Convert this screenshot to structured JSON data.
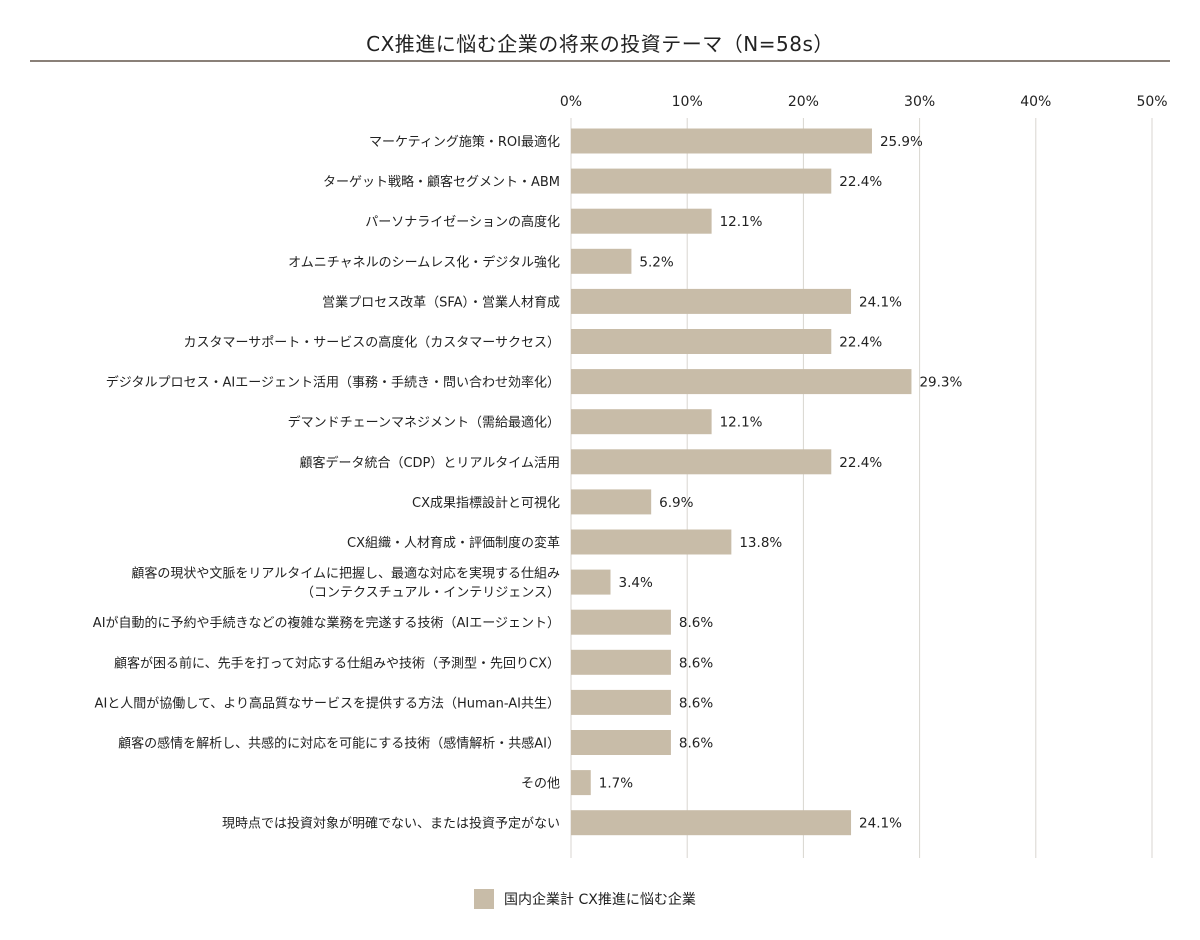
{
  "chart_data": {
    "type": "bar",
    "orientation": "horizontal",
    "title": "CX推進に悩む企業の将来の投資テーマ（N=58s）",
    "xlim": [
      0,
      50
    ],
    "ticks": [
      "0%",
      "10%",
      "20%",
      "30%",
      "40%",
      "50%"
    ],
    "tick_values": [
      0,
      10,
      20,
      30,
      40,
      50
    ],
    "grid": true,
    "legend_position": "bottom",
    "bar_color": "#c8bca8",
    "categories": [
      [
        "マーケティング施策・ROI最適化"
      ],
      [
        "ターゲット戦略・顧客セグメント・ABM"
      ],
      [
        "パーソナライゼーションの高度化"
      ],
      [
        "オムニチャネルのシームレス化・デジタル強化"
      ],
      [
        "営業プロセス改革（SFA）・営業人材育成"
      ],
      [
        "カスタマーサポート・サービスの高度化（カスタマーサクセス）"
      ],
      [
        "デジタルプロセス・AIエージェント活用（事務・手続き・問い合わせ効率化）"
      ],
      [
        "デマンドチェーンマネジメント（需給最適化）"
      ],
      [
        "顧客データ統合（CDP）とリアルタイム活用"
      ],
      [
        "CX成果指標設計と可視化"
      ],
      [
        "CX組織・人材育成・評価制度の変革"
      ],
      [
        "顧客の現状や文脈をリアルタイムに把握し、最適な対応を実現する仕組み",
        "（コンテクスチュアル・インテリジェンス）"
      ],
      [
        "AIが自動的に予約や手続きなどの複雑な業務を完遂する技術（AIエージェント）"
      ],
      [
        "顧客が困る前に、先手を打って対応する仕組みや技術（予測型・先回りCX）"
      ],
      [
        "AIと人間が協働して、より高品質なサービスを提供する方法（Human-AI共生）"
      ],
      [
        "顧客の感情を解析し、共感的に対応を可能にする技術（感情解析・共感AI）"
      ],
      [
        "その他"
      ],
      [
        "現時点では投資対象が明確でない、または投資予定がない"
      ]
    ],
    "values": [
      25.9,
      22.4,
      12.1,
      5.2,
      24.1,
      22.4,
      29.3,
      12.1,
      22.4,
      6.9,
      13.8,
      3.4,
      8.6,
      8.6,
      8.6,
      8.6,
      1.7,
      24.1
    ],
    "value_labels": [
      "25.9%",
      "22.4%",
      "12.1%",
      "5.2%",
      "24.1%",
      "22.4%",
      "29.3%",
      "12.1%",
      "22.4%",
      "6.9%",
      "13.8%",
      "3.4%",
      "8.6%",
      "8.6%",
      "8.6%",
      "8.6%",
      "1.7%",
      "24.1%"
    ],
    "series": [
      {
        "name": "国内企業計 CX推進に悩む企業"
      }
    ]
  }
}
